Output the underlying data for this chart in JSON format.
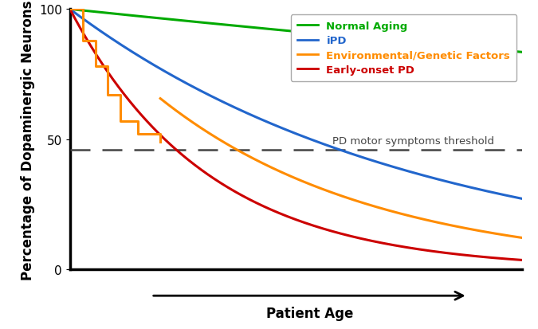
{
  "title": "",
  "xlabel": "Patient Age",
  "ylabel": "Percentage of Dopaminergic Neurons",
  "ylim": [
    0,
    100
  ],
  "xlim": [
    0,
    10
  ],
  "threshold_y": 46,
  "threshold_label": "PD motor symptoms threshold",
  "normal_aging": {
    "color": "#00aa00",
    "label": "Normal Aging",
    "k": 0.018
  },
  "ipd": {
    "color": "#2266cc",
    "label": "iPD",
    "k": 0.13
  },
  "env_genetic": {
    "color": "#ff8c00",
    "label": "Environmental/Genetic Factors",
    "k": 0.21
  },
  "early_onset": {
    "color": "#cc0000",
    "label": "Early-onset PD",
    "k": 0.33
  },
  "step_color": "#ff8c00",
  "legend_fontsize": 9.5,
  "axis_label_fontsize": 12,
  "tick_label_fontsize": 11,
  "threshold_fontsize": 9.5,
  "background_color": "#ffffff",
  "linewidth": 2.2
}
